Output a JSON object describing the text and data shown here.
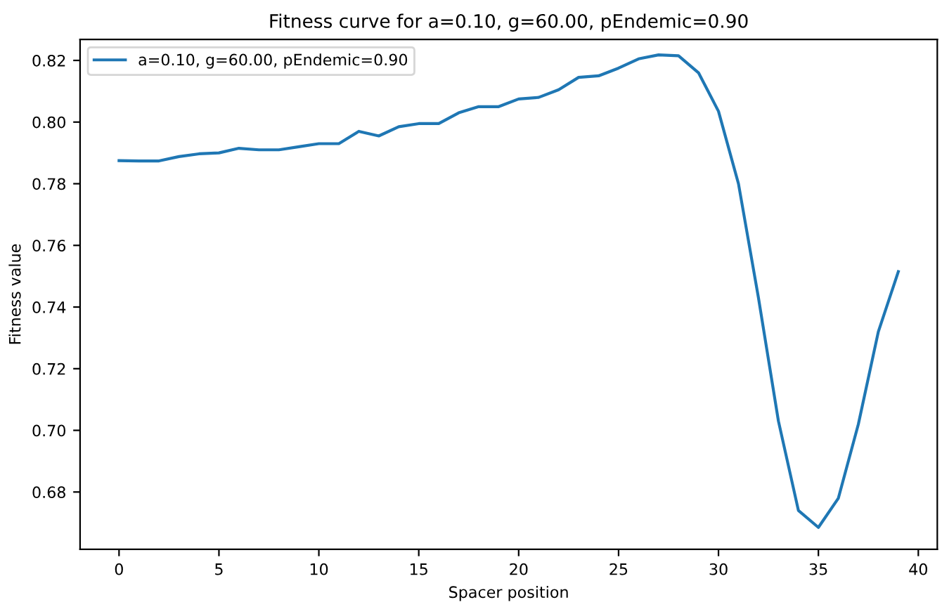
{
  "chart_data": {
    "type": "line",
    "title": "Fitness curve for a=0.10, g=60.00, pEndemic=0.90",
    "xlabel": "Spacer position",
    "ylabel": "Fitness value",
    "x": [
      0,
      1,
      2,
      3,
      4,
      5,
      6,
      7,
      8,
      9,
      10,
      11,
      12,
      13,
      14,
      15,
      16,
      17,
      18,
      19,
      20,
      21,
      22,
      23,
      24,
      25,
      26,
      27,
      28,
      29,
      30,
      31,
      32,
      33,
      34,
      35,
      36,
      37,
      38,
      39
    ],
    "series": [
      {
        "name": "a=0.10, g=60.00, pEndemic=0.90",
        "color": "#1f77b4",
        "values": [
          0.7875,
          0.7874,
          0.7874,
          0.7888,
          0.7897,
          0.79,
          0.7915,
          0.791,
          0.791,
          0.792,
          0.793,
          0.793,
          0.797,
          0.7955,
          0.7985,
          0.7995,
          0.7995,
          0.803,
          0.805,
          0.805,
          0.8075,
          0.808,
          0.8105,
          0.8145,
          0.815,
          0.8175,
          0.8205,
          0.8218,
          0.8215,
          0.816,
          0.8035,
          0.78,
          0.743,
          0.703,
          0.674,
          0.6685,
          0.678,
          0.702,
          0.732,
          0.7515
        ]
      }
    ],
    "xlim": [
      -1.95,
      40.95
    ],
    "ylim": [
      0.6614,
      0.8268
    ],
    "xticks": [
      0,
      5,
      10,
      15,
      20,
      25,
      30,
      35,
      40
    ],
    "yticks": [
      {
        "value": 0.68,
        "label": "0.68"
      },
      {
        "value": 0.7,
        "label": "0.70"
      },
      {
        "value": 0.72,
        "label": "0.72"
      },
      {
        "value": 0.74,
        "label": "0.74"
      },
      {
        "value": 0.76,
        "label": "0.76"
      },
      {
        "value": 0.78,
        "label": "0.78"
      },
      {
        "value": 0.8,
        "label": "0.80"
      },
      {
        "value": 0.82,
        "label": "0.82"
      }
    ],
    "grid": false,
    "legend": "top left",
    "marker": "none",
    "line_style": "solid"
  }
}
